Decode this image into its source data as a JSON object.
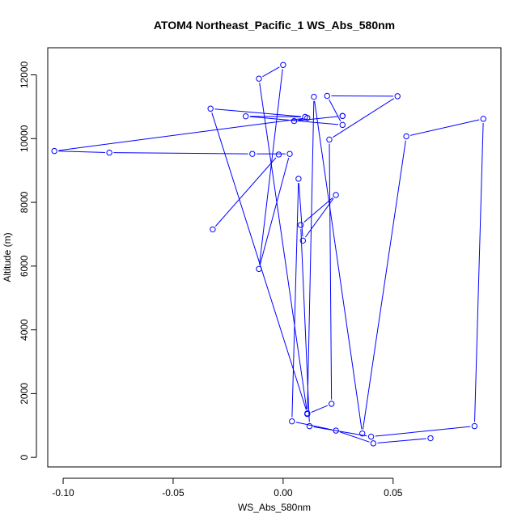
{
  "chart_data": {
    "type": "line",
    "title": "ATOM4 Northeast_Pacific_1 WS_Abs_580nm",
    "xlabel": "WS_Abs_580nm",
    "ylabel": "Altitude (m)",
    "xlim": [
      -0.107,
      0.099
    ],
    "ylim": [
      -300,
      12850
    ],
    "xticks": [
      {
        "value": -0.1,
        "label": "-0.10"
      },
      {
        "value": -0.05,
        "label": "-0.05"
      },
      {
        "value": 0.0,
        "label": "0.00"
      },
      {
        "value": 0.05,
        "label": "0.05"
      }
    ],
    "yticks": [
      {
        "value": 0,
        "label": "0"
      },
      {
        "value": 2000,
        "label": "2000"
      },
      {
        "value": 4000,
        "label": "4000"
      },
      {
        "value": 6000,
        "label": "6000"
      },
      {
        "value": 8000,
        "label": "8000"
      },
      {
        "value": 10000,
        "label": "10000"
      },
      {
        "value": 12000,
        "label": "12000"
      }
    ],
    "grid": false,
    "series": [
      {
        "color": "#0000ff",
        "marker": "open-circle",
        "points": [
          {
            "x": 0.067,
            "y": 600
          },
          {
            "x": 0.041,
            "y": 440
          },
          {
            "x": 0.024,
            "y": 840
          },
          {
            "x": 0.004,
            "y": 1130
          },
          {
            "x": 0.007,
            "y": 8740
          },
          {
            "x": 0.009,
            "y": 6800
          },
          {
            "x": 0.024,
            "y": 8230
          },
          {
            "x": 0.008,
            "y": 7290
          },
          {
            "x": 0.012,
            "y": 980
          },
          {
            "x": 0.04,
            "y": 650
          },
          {
            "x": 0.087,
            "y": 980
          },
          {
            "x": 0.091,
            "y": 10620
          },
          {
            "x": 0.056,
            "y": 10070
          },
          {
            "x": 0.036,
            "y": 750
          },
          {
            "x": 0.014,
            "y": 11310
          },
          {
            "x": 0.011,
            "y": 1380
          },
          {
            "x": -0.033,
            "y": 10940
          },
          {
            "x": 0.01,
            "y": 10680
          },
          {
            "x": -0.017,
            "y": 10700
          },
          {
            "x": 0.027,
            "y": 10430
          },
          {
            "x": 0.02,
            "y": 11340
          },
          {
            "x": 0.052,
            "y": 11330
          },
          {
            "x": 0.021,
            "y": 9970
          },
          {
            "x": 0.022,
            "y": 1680
          },
          {
            "x": 0.011,
            "y": 1360
          },
          {
            "x": -0.011,
            "y": 11880
          },
          {
            "x": 0.0,
            "y": 12310
          },
          {
            "x": -0.011,
            "y": 5910
          },
          {
            "x": 0.003,
            "y": 9520
          },
          {
            "x": -0.014,
            "y": 9520
          },
          {
            "x": -0.079,
            "y": 9560
          },
          {
            "x": -0.104,
            "y": 9610
          },
          {
            "x": 0.011,
            "y": 10650
          },
          {
            "x": 0.005,
            "y": 10550
          },
          {
            "x": 0.027,
            "y": 10710
          },
          {
            "x": 0.027,
            "y": 10710
          }
        ]
      },
      {
        "color": "#0000ff",
        "marker": "open-circle",
        "points": [
          {
            "x": -0.032,
            "y": 7150
          },
          {
            "x": -0.002,
            "y": 9500
          }
        ]
      }
    ]
  }
}
